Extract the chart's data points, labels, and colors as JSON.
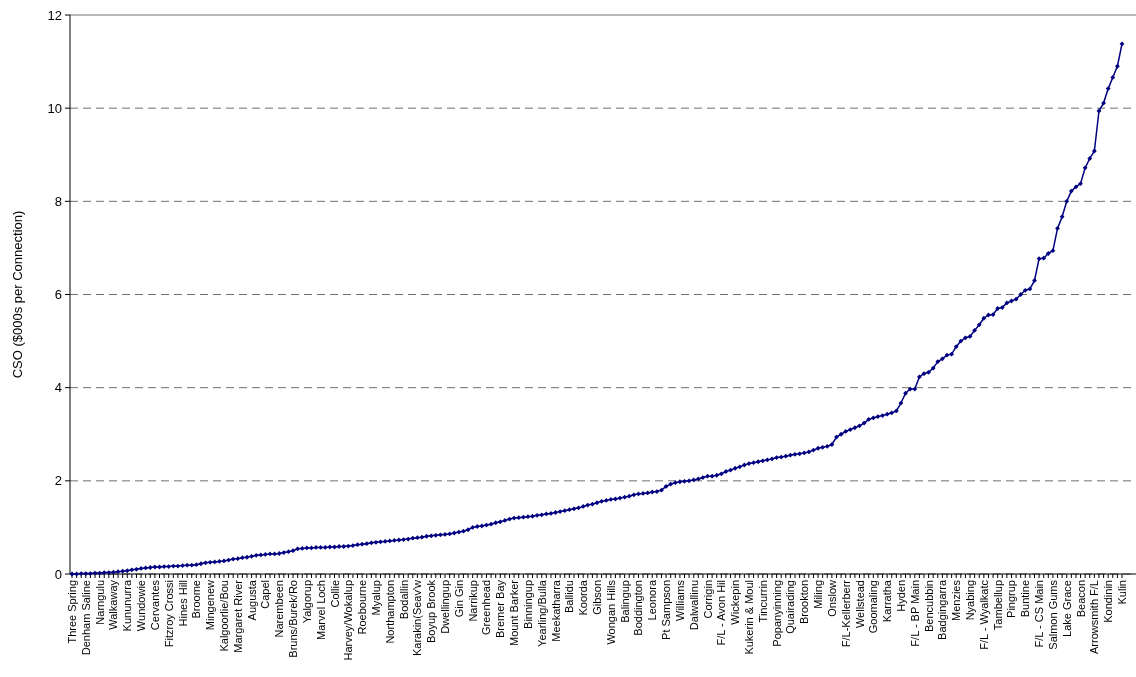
{
  "chart_data": {
    "type": "line",
    "ylabel": "CSO ($000s per Connection)",
    "categories": [
      "Three Spring",
      null,
      null,
      "Denham  Saline",
      null,
      null,
      "Narngulu",
      null,
      null,
      "Walkaway",
      null,
      null,
      "Kununurra",
      null,
      null,
      "Wundowie",
      null,
      null,
      "Cervantes",
      null,
      null,
      "Fitzroy Crossi",
      null,
      null,
      "Hines Hill",
      null,
      null,
      "Broome",
      null,
      null,
      "Mingenew",
      null,
      null,
      "Kalgoorlie/Bou",
      null,
      null,
      "Margaret River",
      null,
      null,
      "Augusta",
      null,
      null,
      "Capel",
      null,
      null,
      "Narembeen",
      null,
      null,
      "Bruns/Burek/Ro",
      null,
      null,
      "Yalgorup",
      null,
      null,
      "Marvel Loch",
      null,
      null,
      "Collie",
      null,
      null,
      "Harvey/Wokalup",
      null,
      null,
      "Roebourne",
      null,
      null,
      "Myalup",
      null,
      null,
      "Northampton",
      null,
      null,
      "Bodallin",
      null,
      null,
      "Karakin(Seav'w",
      null,
      null,
      "Boyup Brook",
      null,
      null,
      "Dwellingup",
      null,
      null,
      "Gin Gin",
      null,
      null,
      "Narrikup",
      null,
      null,
      "Greenhead",
      null,
      null,
      "Bremer Bay",
      null,
      null,
      "Mount Barker",
      null,
      null,
      "Binningup",
      null,
      null,
      "Yearling/Bulla",
      null,
      null,
      "Meekatharra",
      null,
      null,
      "Ballidu",
      null,
      null,
      "Koorda",
      null,
      null,
      "Gibson",
      null,
      null,
      "Wongan Hills",
      null,
      null,
      "Balingup",
      null,
      null,
      "Boddington",
      null,
      null,
      "Leonora",
      null,
      null,
      "Pt Sampson",
      null,
      null,
      "Williams",
      null,
      null,
      "Dalwallinu",
      null,
      null,
      "Corrigin",
      null,
      null,
      "F/L - Avon Hil",
      null,
      null,
      "Wickepin",
      null,
      null,
      "Kukerin & Moul",
      null,
      null,
      "Tincurrin",
      null,
      null,
      "Popanyinning",
      null,
      null,
      "Quairading",
      null,
      null,
      "Brookton",
      null,
      null,
      "Miling",
      null,
      null,
      "Onslow",
      null,
      null,
      "F/L-Kellerberr",
      null,
      null,
      "Wellstead",
      null,
      null,
      "Goomaling",
      null,
      null,
      "Karratha",
      null,
      null,
      "Hyden",
      null,
      null,
      "F/L - BP Main",
      null,
      null,
      "Bencubbin",
      null,
      null,
      "Badgingarra",
      null,
      null,
      "Menzies",
      null,
      null,
      "Nyabing",
      null,
      null,
      "F/L - Wyalkatc",
      null,
      null,
      "Tambellup",
      null,
      null,
      "Pingrup",
      null,
      null,
      "Buntine",
      null,
      null,
      "F/L - CS Main",
      null,
      null,
      "Salmon Gums",
      null,
      null,
      "Lake Grace",
      null,
      null,
      "Beacon",
      null,
      null,
      "Arrowsmith F/L",
      null,
      null,
      "Kondinin",
      null,
      null,
      "Kulin"
    ],
    "series": [
      {
        "color": "#000080",
        "values": [
          0,
          0,
          0.01,
          0.01,
          0.01,
          0.02,
          0.02,
          0.03,
          0.03,
          0.04,
          0.05,
          0.06,
          0.07,
          0.09,
          0.1,
          0.12,
          0.13,
          0.14,
          0.15,
          0.15,
          0.16,
          0.16,
          0.17,
          0.17,
          0.18,
          0.19,
          0.19,
          0.2,
          0.22,
          0.24,
          0.25,
          0.26,
          0.27,
          0.28,
          0.3,
          0.32,
          0.33,
          0.35,
          0.36,
          0.38,
          0.4,
          0.41,
          0.42,
          0.43,
          0.43,
          0.44,
          0.46,
          0.48,
          0.5,
          0.54,
          0.55,
          0.56,
          0.56,
          0.57,
          0.57,
          0.57,
          0.58,
          0.58,
          0.59,
          0.59,
          0.6,
          0.61,
          0.63,
          0.64,
          0.65,
          0.67,
          0.68,
          0.69,
          0.7,
          0.71,
          0.72,
          0.73,
          0.74,
          0.75,
          0.77,
          0.78,
          0.79,
          0.81,
          0.82,
          0.83,
          0.84,
          0.85,
          0.86,
          0.88,
          0.9,
          0.92,
          0.95,
          1.0,
          1.02,
          1.03,
          1.05,
          1.07,
          1.1,
          1.12,
          1.15,
          1.18,
          1.2,
          1.21,
          1.22,
          1.23,
          1.24,
          1.26,
          1.27,
          1.29,
          1.3,
          1.32,
          1.34,
          1.36,
          1.38,
          1.4,
          1.42,
          1.45,
          1.48,
          1.5,
          1.53,
          1.56,
          1.58,
          1.6,
          1.61,
          1.63,
          1.65,
          1.67,
          1.7,
          1.72,
          1.73,
          1.74,
          1.76,
          1.77,
          1.8,
          1.88,
          1.93,
          1.96,
          1.98,
          1.99,
          2.0,
          2.02,
          2.04,
          2.07,
          2.1,
          2.1,
          2.12,
          2.15,
          2.2,
          2.23,
          2.27,
          2.3,
          2.34,
          2.37,
          2.39,
          2.41,
          2.43,
          2.45,
          2.47,
          2.5,
          2.51,
          2.53,
          2.55,
          2.57,
          2.58,
          2.6,
          2.62,
          2.66,
          2.7,
          2.72,
          2.74,
          2.78,
          2.94,
          3.0,
          3.06,
          3.1,
          3.14,
          3.18,
          3.24,
          3.32,
          3.35,
          3.38,
          3.4,
          3.43,
          3.46,
          3.5,
          3.67,
          3.88,
          3.97,
          3.97,
          4.23,
          4.3,
          4.33,
          4.42,
          4.56,
          4.62,
          4.7,
          4.72,
          4.88,
          5.0,
          5.07,
          5.1,
          5.23,
          5.35,
          5.49,
          5.56,
          5.57,
          5.7,
          5.72,
          5.82,
          5.86,
          5.9,
          6.0,
          6.09,
          6.12,
          6.3,
          6.77,
          6.78,
          6.88,
          6.94,
          7.42,
          7.67,
          8.0,
          8.22,
          8.31,
          8.38,
          8.72,
          8.92,
          9.08,
          9.94,
          10.11,
          10.42,
          10.66,
          10.9,
          11.38
        ]
      }
    ],
    "ylim": [
      0,
      12
    ],
    "yticks": [
      0,
      2,
      4,
      6,
      8,
      10,
      12
    ],
    "grid": "y",
    "marker": "diamond",
    "line_style": "solid"
  }
}
